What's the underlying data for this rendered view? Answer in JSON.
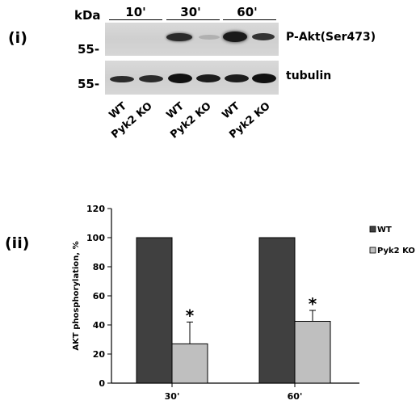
{
  "panel_i": {
    "label": "(i)",
    "kda_label": "kDa",
    "marker_top": "55-",
    "marker_bottom": "55-",
    "timepoints": [
      "10'",
      "30'",
      "60'"
    ],
    "blot_labels": [
      "P-Akt(Ser473)",
      "tubulin"
    ],
    "lanes": [
      "WT",
      "Pyk2 KO",
      "WT",
      "Pyk2 KO",
      "WT",
      "Pyk2 KO"
    ]
  },
  "panel_ii": {
    "label": "(ii)"
  },
  "colors": {
    "wt": "#404040",
    "ko": "#bfbfbf"
  },
  "chart_data": {
    "type": "bar",
    "categories": [
      "30'",
      "60'"
    ],
    "series": [
      {
        "name": "WT",
        "values": [
          100,
          100
        ]
      },
      {
        "name": "Pyk2 KO",
        "values": [
          27,
          42.5
        ],
        "errors": [
          15,
          7.5
        ]
      }
    ],
    "annotations": [
      "*",
      "*"
    ],
    "ylabel": "AKT phosphorylation, %",
    "ylim": [
      0,
      120
    ],
    "yticks": [
      0,
      20,
      40,
      60,
      80,
      100,
      120
    ],
    "legend_position": "right"
  }
}
